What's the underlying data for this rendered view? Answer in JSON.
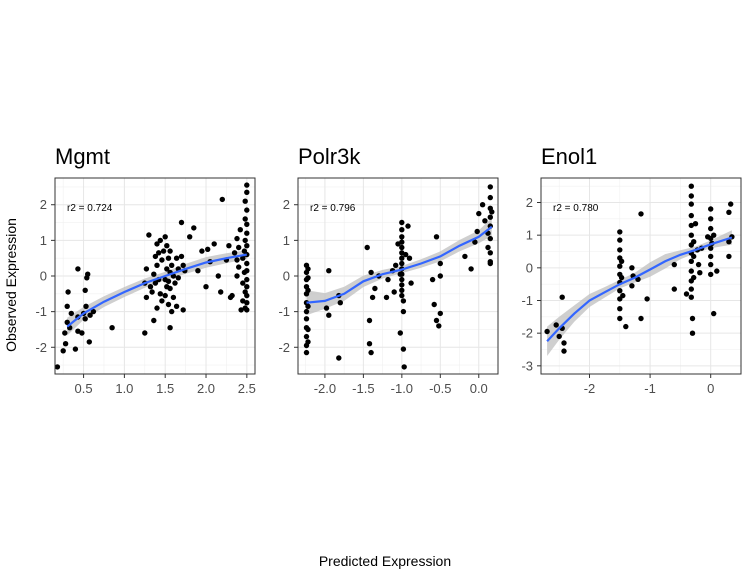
{
  "figure": {
    "xlabel": "Predicted Expression",
    "ylabel": "Observed Expression"
  },
  "chart_data": [
    {
      "type": "scatter",
      "title": "Mgmt",
      "annotation": "r2 =  0.724",
      "xlim": [
        0.15,
        2.6
      ],
      "ylim": [
        -2.75,
        2.75
      ],
      "xticks": [
        0.5,
        1.0,
        1.5,
        2.0,
        2.5
      ],
      "xtick_labels": [
        "0.5",
        "1.0",
        "1.5",
        "2.0",
        "2.5"
      ],
      "yticks": [
        -2,
        -1,
        0,
        1,
        2
      ],
      "ytick_labels": [
        "-2",
        "-1",
        "0",
        "1",
        "2"
      ],
      "grid": true,
      "colors": {
        "points": "#000000",
        "smooth": "#3366ff",
        "ribbon": "#bfbfbf"
      },
      "points": [
        [
          0.18,
          -2.55
        ],
        [
          0.25,
          -2.1
        ],
        [
          0.28,
          -1.9
        ],
        [
          0.27,
          -1.6
        ],
        [
          0.3,
          -1.3
        ],
        [
          0.3,
          -0.85
        ],
        [
          0.31,
          -0.45
        ],
        [
          0.33,
          -1.45
        ],
        [
          0.35,
          -1.05
        ],
        [
          0.4,
          -2.05
        ],
        [
          0.43,
          -1.55
        ],
        [
          0.43,
          -1.15
        ],
        [
          0.43,
          0.2
        ],
        [
          0.48,
          -1.6
        ],
        [
          0.5,
          -1.05
        ],
        [
          0.52,
          -1.2
        ],
        [
          0.53,
          -0.85
        ],
        [
          0.52,
          -0.4
        ],
        [
          0.54,
          -0.05
        ],
        [
          0.55,
          0.05
        ],
        [
          0.57,
          -1.85
        ],
        [
          0.58,
          -1.1
        ],
        [
          0.62,
          -1.0
        ],
        [
          0.85,
          -1.45
        ],
        [
          1.25,
          -1.6
        ],
        [
          1.25,
          -0.2
        ],
        [
          1.27,
          -0.6
        ],
        [
          1.27,
          0.2
        ],
        [
          1.3,
          1.15
        ],
        [
          1.32,
          -0.3
        ],
        [
          1.34,
          -0.45
        ],
        [
          1.36,
          -1.25
        ],
        [
          1.36,
          0.05
        ],
        [
          1.38,
          -0.2
        ],
        [
          1.38,
          0.55
        ],
        [
          1.4,
          -0.9
        ],
        [
          1.4,
          0.3
        ],
        [
          1.4,
          0.9
        ],
        [
          1.42,
          -0.1
        ],
        [
          1.42,
          0.65
        ],
        [
          1.44,
          -0.5
        ],
        [
          1.44,
          1.0
        ],
        [
          1.46,
          -0.7
        ],
        [
          1.46,
          0.45
        ],
        [
          1.48,
          0.7
        ],
        [
          1.5,
          -0.55
        ],
        [
          1.5,
          -0.1
        ],
        [
          1.5,
          1.1
        ],
        [
          1.52,
          -0.3
        ],
        [
          1.52,
          0.2
        ],
        [
          1.52,
          0.85
        ],
        [
          1.54,
          -0.8
        ],
        [
          1.54,
          -0.15
        ],
        [
          1.54,
          0.5
        ],
        [
          1.56,
          -1.45
        ],
        [
          1.56,
          -0.35
        ],
        [
          1.56,
          0.1
        ],
        [
          1.56,
          0.7
        ],
        [
          1.58,
          -1.0
        ],
        [
          1.58,
          0.3
        ],
        [
          1.6,
          -0.6
        ],
        [
          1.6,
          0.0
        ],
        [
          1.62,
          -0.2
        ],
        [
          1.64,
          0.5
        ],
        [
          1.64,
          -0.85
        ],
        [
          1.66,
          -0.05
        ],
        [
          1.66,
          0.2
        ],
        [
          1.7,
          1.5
        ],
        [
          1.7,
          0.55
        ],
        [
          1.72,
          -0.95
        ],
        [
          1.72,
          0.3
        ],
        [
          1.74,
          0.15
        ],
        [
          1.8,
          1.1
        ],
        [
          1.85,
          1.35
        ],
        [
          1.9,
          0.15
        ],
        [
          1.95,
          0.7
        ],
        [
          2.0,
          -0.3
        ],
        [
          2.02,
          0.75
        ],
        [
          2.05,
          0.4
        ],
        [
          2.1,
          0.9
        ],
        [
          2.15,
          0.0
        ],
        [
          2.18,
          -0.45
        ],
        [
          2.2,
          2.15
        ],
        [
          2.25,
          0.45
        ],
        [
          2.28,
          0.85
        ],
        [
          2.3,
          -0.6
        ],
        [
          2.32,
          -0.55
        ],
        [
          2.35,
          0.65
        ],
        [
          2.38,
          1.05
        ],
        [
          2.38,
          0.45
        ],
        [
          2.38,
          0.0
        ],
        [
          2.4,
          0.8
        ],
        [
          2.4,
          0.25
        ],
        [
          2.42,
          1.3
        ],
        [
          2.43,
          -0.95
        ],
        [
          2.45,
          0.5
        ],
        [
          2.45,
          -0.2
        ],
        [
          2.45,
          -0.7
        ],
        [
          2.47,
          0.7
        ],
        [
          2.47,
          0.1
        ],
        [
          2.48,
          2.1
        ],
        [
          2.48,
          1.6
        ],
        [
          2.48,
          1.0
        ],
        [
          2.48,
          -0.45
        ],
        [
          2.48,
          -0.9
        ],
        [
          2.5,
          2.55
        ],
        [
          2.5,
          2.35
        ],
        [
          2.5,
          1.85
        ],
        [
          2.5,
          1.45
        ],
        [
          2.5,
          1.2
        ],
        [
          2.5,
          0.85
        ],
        [
          2.5,
          0.6
        ],
        [
          2.5,
          0.35
        ],
        [
          2.5,
          0.15
        ],
        [
          2.5,
          -0.1
        ],
        [
          2.5,
          -0.3
        ],
        [
          2.5,
          -0.55
        ],
        [
          2.5,
          -0.75
        ],
        [
          2.5,
          -0.95
        ]
      ],
      "smooth": [
        [
          0.3,
          -1.42,
          0.25
        ],
        [
          0.5,
          -1.05,
          0.18
        ],
        [
          0.75,
          -0.72,
          0.15
        ],
        [
          1.0,
          -0.45,
          0.14
        ],
        [
          1.25,
          -0.2,
          0.13
        ],
        [
          1.5,
          0.0,
          0.12
        ],
        [
          1.75,
          0.2,
          0.14
        ],
        [
          2.0,
          0.38,
          0.15
        ],
        [
          2.25,
          0.5,
          0.14
        ],
        [
          2.5,
          0.6,
          0.12
        ]
      ]
    },
    {
      "type": "scatter",
      "title": "Polr3k",
      "annotation": "r2 =  0.796",
      "xlim": [
        -2.35,
        0.25
      ],
      "ylim": [
        -2.75,
        2.75
      ],
      "xticks": [
        -2.0,
        -1.5,
        -1.0,
        -0.5,
        0.0
      ],
      "xtick_labels": [
        "-2.0",
        "-1.5",
        "-1.0",
        "-0.5",
        "0.0"
      ],
      "yticks": [
        -2,
        -1,
        0,
        1,
        2
      ],
      "ytick_labels": [
        "-2",
        "-1",
        "0",
        "1",
        "2"
      ],
      "grid": true,
      "colors": {
        "points": "#000000",
        "smooth": "#3366ff",
        "ribbon": "#bfbfbf"
      },
      "points": [
        [
          -2.24,
          -2.15
        ],
        [
          -2.24,
          -1.95
        ],
        [
          -2.24,
          -1.7
        ],
        [
          -2.24,
          -1.45
        ],
        [
          -2.24,
          -1.2
        ],
        [
          -2.24,
          -1.0
        ],
        [
          -2.24,
          -0.75
        ],
        [
          -2.24,
          -0.5
        ],
        [
          -2.24,
          -0.3
        ],
        [
          -2.24,
          -0.1
        ],
        [
          -2.24,
          0.1
        ],
        [
          -2.24,
          0.3
        ],
        [
          -2.22,
          -1.5
        ],
        [
          -2.22,
          -0.85
        ],
        [
          -2.22,
          -0.4
        ],
        [
          -2.22,
          -0.05
        ],
        [
          -2.22,
          0.2
        ],
        [
          -2.22,
          -1.85
        ],
        [
          -1.98,
          -0.9
        ],
        [
          -1.95,
          -1.1
        ],
        [
          -1.95,
          0.15
        ],
        [
          -1.82,
          -0.55
        ],
        [
          -1.82,
          -2.3
        ],
        [
          -1.8,
          -0.75
        ],
        [
          -1.45,
          0.8
        ],
        [
          -1.42,
          -1.25
        ],
        [
          -1.42,
          -1.9
        ],
        [
          -1.4,
          -2.15
        ],
        [
          -1.4,
          0.1
        ],
        [
          -1.38,
          -0.6
        ],
        [
          -1.35,
          -0.35
        ],
        [
          -1.3,
          0.0
        ],
        [
          -1.2,
          -0.6
        ],
        [
          -1.18,
          -0.1
        ],
        [
          -1.12,
          0.15
        ],
        [
          -1.1,
          -0.45
        ],
        [
          -1.08,
          0.3
        ],
        [
          -1.05,
          0.9
        ],
        [
          -1.02,
          -1.6
        ],
        [
          -1.02,
          0.05
        ],
        [
          -1.0,
          1.5
        ],
        [
          -1.0,
          1.3
        ],
        [
          -1.0,
          1.1
        ],
        [
          -1.0,
          0.95
        ],
        [
          -1.0,
          0.8
        ],
        [
          -1.0,
          0.65
        ],
        [
          -1.0,
          0.5
        ],
        [
          -1.0,
          0.35
        ],
        [
          -1.0,
          0.2
        ],
        [
          -1.0,
          0.05
        ],
        [
          -1.0,
          -0.1
        ],
        [
          -1.0,
          -0.25
        ],
        [
          -1.0,
          -0.4
        ],
        [
          -1.0,
          -0.55
        ],
        [
          -0.98,
          -2.05
        ],
        [
          -0.98,
          -1.0
        ],
        [
          -0.98,
          -0.7
        ],
        [
          -0.97,
          -2.55
        ],
        [
          -0.95,
          0.6
        ],
        [
          -0.92,
          1.4
        ],
        [
          -0.9,
          0.5
        ],
        [
          -0.88,
          -0.2
        ],
        [
          -0.6,
          -0.1
        ],
        [
          -0.58,
          -0.8
        ],
        [
          -0.55,
          1.1
        ],
        [
          -0.55,
          -1.25
        ],
        [
          -0.52,
          -1.4
        ],
        [
          -0.5,
          -1.05
        ],
        [
          -0.5,
          0.35
        ],
        [
          -0.5,
          0.0
        ],
        [
          -0.18,
          0.55
        ],
        [
          -0.1,
          0.2
        ],
        [
          -0.05,
          0.95
        ],
        [
          -0.02,
          1.25
        ],
        [
          0.0,
          1.75
        ],
        [
          0.05,
          2.0
        ],
        [
          0.08,
          1.55
        ],
        [
          0.12,
          1.2
        ],
        [
          0.12,
          0.8
        ],
        [
          0.15,
          2.5
        ],
        [
          0.15,
          2.2
        ],
        [
          0.15,
          1.9
        ],
        [
          0.15,
          1.65
        ],
        [
          0.15,
          1.4
        ],
        [
          0.15,
          1.05
        ],
        [
          0.15,
          0.65
        ],
        [
          0.15,
          0.4
        ],
        [
          0.15,
          0.35
        ],
        [
          0.17,
          1.8
        ]
      ],
      "smooth": [
        [
          -2.24,
          -0.75,
          0.35
        ],
        [
          -2.0,
          -0.7,
          0.22
        ],
        [
          -1.75,
          -0.5,
          0.2
        ],
        [
          -1.5,
          -0.15,
          0.16
        ],
        [
          -1.25,
          0.05,
          0.12
        ],
        [
          -1.0,
          0.18,
          0.1
        ],
        [
          -0.75,
          0.35,
          0.12
        ],
        [
          -0.5,
          0.55,
          0.14
        ],
        [
          -0.25,
          0.85,
          0.16
        ],
        [
          0.0,
          1.1,
          0.18
        ],
        [
          0.17,
          1.38,
          0.25
        ]
      ]
    },
    {
      "type": "scatter",
      "title": "Enol1",
      "annotation": "r2 =  0.780",
      "xlim": [
        -2.8,
        0.5
      ],
      "ylim": [
        -3.25,
        2.75
      ],
      "xticks": [
        -2,
        -1,
        0
      ],
      "xtick_labels": [
        "-2",
        "-1",
        "0"
      ],
      "yticks": [
        -3,
        -2,
        -1,
        0,
        1,
        2
      ],
      "ytick_labels": [
        "-3",
        "-2",
        "-1",
        "0",
        "1",
        "2"
      ],
      "grid": true,
      "colors": {
        "points": "#000000",
        "smooth": "#3366ff",
        "ribbon": "#bfbfbf"
      },
      "points": [
        [
          -2.7,
          -1.95
        ],
        [
          -2.55,
          -1.75
        ],
        [
          -2.5,
          -2.1
        ],
        [
          -2.45,
          -0.9
        ],
        [
          -2.45,
          -1.85
        ],
        [
          -2.42,
          -2.3
        ],
        [
          -2.42,
          -2.55
        ],
        [
          -1.5,
          1.1
        ],
        [
          -1.5,
          0.85
        ],
        [
          -1.5,
          0.55
        ],
        [
          -1.5,
          0.3
        ],
        [
          -1.5,
          0.05
        ],
        [
          -1.5,
          -0.2
        ],
        [
          -1.5,
          -0.45
        ],
        [
          -1.5,
          -0.7
        ],
        [
          -1.5,
          -0.95
        ],
        [
          -1.5,
          -1.25
        ],
        [
          -1.5,
          -1.55
        ],
        [
          -1.47,
          -0.3
        ],
        [
          -1.47,
          0.2
        ],
        [
          -1.45,
          -0.85
        ],
        [
          -1.4,
          -1.8
        ],
        [
          -1.3,
          0.0
        ],
        [
          -1.3,
          -0.55
        ],
        [
          -1.28,
          -0.25
        ],
        [
          -1.2,
          -0.35
        ],
        [
          -1.15,
          -1.55
        ],
        [
          -1.15,
          1.65
        ],
        [
          -1.05,
          -0.95
        ],
        [
          -0.6,
          -0.65
        ],
        [
          -0.6,
          0.1
        ],
        [
          -0.4,
          -0.8
        ],
        [
          -0.32,
          2.5
        ],
        [
          -0.32,
          2.2
        ],
        [
          -0.32,
          1.95
        ],
        [
          -0.32,
          1.6
        ],
        [
          -0.32,
          1.3
        ],
        [
          -0.32,
          1.0
        ],
        [
          -0.32,
          0.7
        ],
        [
          -0.32,
          0.45
        ],
        [
          -0.32,
          0.2
        ],
        [
          -0.32,
          -0.1
        ],
        [
          -0.32,
          -0.4
        ],
        [
          -0.32,
          -0.65
        ],
        [
          -0.32,
          -0.9
        ],
        [
          -0.3,
          -1.55
        ],
        [
          -0.3,
          -2.0
        ],
        [
          -0.28,
          0.35
        ],
        [
          -0.28,
          -0.3
        ],
        [
          -0.28,
          0.8
        ],
        [
          -0.25,
          1.35
        ],
        [
          -0.22,
          0.55
        ],
        [
          -0.2,
          0.1
        ],
        [
          -0.18,
          -0.15
        ],
        [
          -0.15,
          0.6
        ],
        [
          -0.05,
          0.95
        ],
        [
          0.0,
          1.8
        ],
        [
          0.0,
          1.5
        ],
        [
          0.0,
          1.2
        ],
        [
          0.0,
          0.9
        ],
        [
          0.0,
          0.6
        ],
        [
          0.0,
          0.35
        ],
        [
          0.0,
          0.1
        ],
        [
          0.0,
          -0.2
        ],
        [
          0.02,
          0.75
        ],
        [
          0.05,
          -1.4
        ],
        [
          0.05,
          1.0
        ],
        [
          0.1,
          -0.1
        ],
        [
          0.3,
          1.7
        ],
        [
          0.3,
          0.8
        ],
        [
          0.3,
          0.35
        ],
        [
          0.33,
          1.95
        ],
        [
          0.35,
          0.95
        ]
      ],
      "smooth": [
        [
          -2.7,
          -2.25,
          0.45
        ],
        [
          -2.5,
          -1.85,
          0.35
        ],
        [
          -2.25,
          -1.4,
          0.25
        ],
        [
          -2.0,
          -1.0,
          0.2
        ],
        [
          -1.75,
          -0.75,
          0.16
        ],
        [
          -1.5,
          -0.5,
          0.13
        ],
        [
          -1.25,
          -0.3,
          0.15
        ],
        [
          -1.0,
          -0.05,
          0.22
        ],
        [
          -0.75,
          0.2,
          0.22
        ],
        [
          -0.5,
          0.4,
          0.14
        ],
        [
          -0.25,
          0.55,
          0.1
        ],
        [
          0.0,
          0.72,
          0.12
        ],
        [
          0.35,
          0.93,
          0.22
        ]
      ]
    }
  ]
}
